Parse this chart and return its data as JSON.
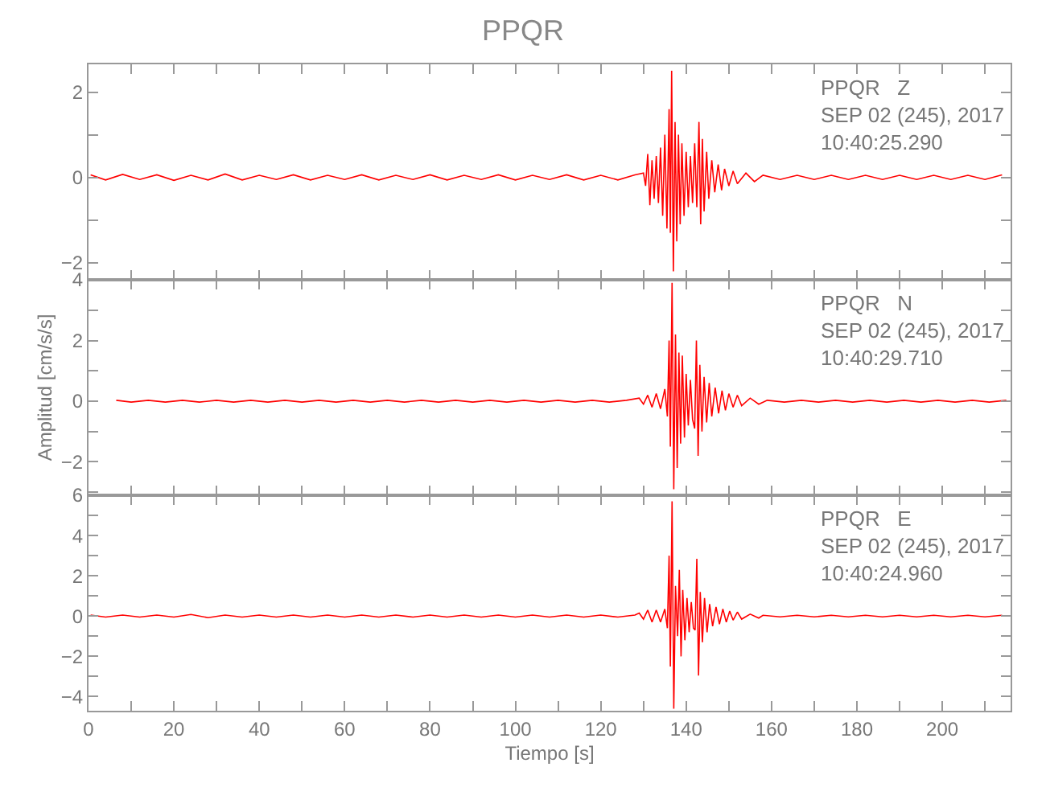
{
  "chart_data": [
    {
      "type": "line",
      "title": "PPQR",
      "color": "#ff0000",
      "xlim": [
        0,
        216
      ],
      "ylim": [
        -2.4,
        2.65
      ],
      "tick_labels": "y",
      "xticks": [
        0,
        {
          "value": 10,
          "label": null
        },
        20,
        {
          "value": 30,
          "label": null
        },
        40,
        {
          "value": 50,
          "label": null
        },
        60,
        {
          "value": 70,
          "label": null
        },
        80,
        {
          "value": 90,
          "label": null
        },
        100,
        {
          "value": 110,
          "label": null
        },
        120,
        {
          "value": 130,
          "label": null
        },
        140,
        {
          "value": 150,
          "label": null
        },
        160,
        {
          "value": 170,
          "label": null
        },
        180,
        {
          "value": 190,
          "label": null
        },
        200,
        {
          "value": 210,
          "label": null
        }
      ],
      "yticks": [
        -2,
        {
          "value": -1,
          "label": null
        },
        0,
        {
          "value": 1,
          "label": null
        },
        2
      ],
      "annotations": [
        "PPQR   Z\nSEP 02 (245), 2017\n10:40:25.290"
      ],
      "x": [
        0.5,
        4,
        8,
        12,
        16,
        20,
        24,
        28,
        32,
        36,
        40,
        44,
        48,
        52,
        56,
        60,
        64,
        68,
        72,
        76,
        80,
        84,
        88,
        92,
        96,
        100,
        104,
        108,
        112,
        116,
        120,
        124,
        128,
        130,
        130.5,
        131,
        131.5,
        132,
        132.5,
        133,
        133.5,
        134,
        134.5,
        135,
        135.5,
        136,
        136.3,
        136.6,
        137,
        137.4,
        137.8,
        138.2,
        138.6,
        139,
        139.5,
        140,
        140.5,
        141,
        141.5,
        142,
        142.5,
        143,
        143.4,
        143.8,
        144.2,
        144.8,
        145.3,
        146,
        146.7,
        147.5,
        148.3,
        149,
        150,
        151,
        152,
        154,
        156,
        158,
        162,
        166,
        170,
        174,
        178,
        182,
        186,
        190,
        194,
        198,
        202,
        206,
        210,
        214
      ],
      "values": [
        0.06,
        -0.06,
        0.07,
        -0.05,
        0.06,
        -0.07,
        0.05,
        -0.06,
        0.08,
        -0.06,
        0.05,
        -0.05,
        0.06,
        -0.06,
        0.05,
        -0.05,
        0.06,
        -0.06,
        0.05,
        -0.05,
        0.06,
        -0.06,
        0.05,
        -0.05,
        0.06,
        -0.06,
        0.05,
        -0.05,
        0.06,
        -0.06,
        0.05,
        -0.06,
        0.06,
        0.1,
        -0.2,
        0.55,
        -0.65,
        0.4,
        -0.5,
        0.5,
        -0.6,
        0.7,
        -0.9,
        1.0,
        -1.2,
        1.6,
        -1.3,
        2.5,
        -2.2,
        1.3,
        -1.5,
        1.0,
        -1.1,
        0.8,
        -0.9,
        0.6,
        -0.7,
        0.5,
        -0.6,
        0.8,
        -0.7,
        1.3,
        -1.1,
        0.9,
        -0.8,
        0.6,
        -0.5,
        0.4,
        -0.35,
        0.3,
        -0.3,
        0.2,
        -0.2,
        0.15,
        -0.15,
        0.1,
        -0.1,
        0.05,
        -0.05,
        0.05,
        -0.05,
        0.05,
        -0.05,
        0.05,
        -0.05,
        0.05,
        -0.05,
        0.05,
        -0.05,
        0.05,
        -0.05,
        0.06
      ]
    },
    {
      "type": "line",
      "ylabel": "Amplitud [cm/s/s]",
      "color": "#ff0000",
      "xlim": [
        0,
        216
      ],
      "ylim": [
        -3.1,
        4
      ],
      "tick_labels": "y",
      "xticks": [
        0,
        {
          "value": 10,
          "label": null
        },
        20,
        {
          "value": 30,
          "label": null
        },
        40,
        {
          "value": 50,
          "label": null
        },
        60,
        {
          "value": 70,
          "label": null
        },
        80,
        {
          "value": 90,
          "label": null
        },
        100,
        {
          "value": 110,
          "label": null
        },
        120,
        {
          "value": 130,
          "label": null
        },
        140,
        {
          "value": 150,
          "label": null
        },
        160,
        {
          "value": 170,
          "label": null
        },
        180,
        {
          "value": 190,
          "label": null
        },
        200,
        {
          "value": 210,
          "label": null
        }
      ],
      "yticks": [
        {
          "value": -3,
          "label": null
        },
        -2,
        {
          "value": -1,
          "label": null
        },
        0,
        {
          "value": 1,
          "label": null
        },
        2,
        {
          "value": 3,
          "label": null
        },
        4
      ],
      "annotations": [
        "PPQR   N\nSEP 02 (245), 2017\n10:40:29.710"
      ],
      "x": [
        6.5,
        10,
        14,
        18,
        22,
        26,
        30,
        34,
        38,
        42,
        46,
        50,
        54,
        58,
        62,
        66,
        70,
        74,
        78,
        82,
        86,
        90,
        94,
        98,
        102,
        106,
        110,
        114,
        118,
        122,
        126,
        129,
        130,
        131,
        132,
        133,
        134,
        135,
        135.6,
        136,
        136.3,
        136.7,
        137.1,
        137.5,
        137.9,
        138.3,
        138.7,
        139.1,
        139.6,
        140,
        140.5,
        141,
        141.5,
        142,
        142.4,
        142.8,
        143.2,
        143.7,
        144.2,
        144.8,
        145.4,
        146,
        146.8,
        147.6,
        148.4,
        149.2,
        150,
        151,
        152,
        153,
        155,
        157,
        159,
        163,
        167,
        171,
        175,
        179,
        183,
        187,
        191,
        195,
        199,
        203,
        207,
        211,
        215
      ],
      "values": [
        0.03,
        -0.03,
        0.03,
        -0.03,
        0.03,
        -0.03,
        0.03,
        -0.03,
        0.03,
        -0.03,
        0.03,
        -0.03,
        0.03,
        -0.03,
        0.03,
        -0.03,
        0.03,
        -0.03,
        0.03,
        -0.03,
        0.03,
        -0.03,
        0.03,
        -0.03,
        0.03,
        -0.03,
        0.03,
        -0.03,
        0.03,
        -0.03,
        0.03,
        0.1,
        -0.1,
        0.2,
        -0.2,
        0.25,
        -0.25,
        0.4,
        -0.5,
        2.0,
        -1.5,
        3.9,
        -2.9,
        2.2,
        -2.2,
        1.6,
        -1.4,
        1.5,
        -1.2,
        0.9,
        -0.8,
        0.7,
        -0.6,
        -0.9,
        2.0,
        -1.8,
        1.2,
        -1.0,
        0.8,
        -0.7,
        0.6,
        -0.5,
        0.45,
        -0.4,
        0.35,
        -0.3,
        0.25,
        -0.2,
        0.2,
        -0.15,
        0.1,
        -0.1,
        0.03,
        -0.03,
        0.03,
        -0.03,
        0.03,
        -0.03,
        0.03,
        -0.03,
        0.03,
        -0.03,
        0.03,
        -0.03,
        0.03,
        -0.03,
        0.03
      ]
    },
    {
      "type": "line",
      "xlabel": "Tiempo [s]",
      "color": "#ff0000",
      "xlim": [
        0,
        216
      ],
      "ylim": [
        -4.7,
        6
      ],
      "xticks": [
        0,
        {
          "value": 10,
          "label": null
        },
        20,
        {
          "value": 30,
          "label": null
        },
        40,
        {
          "value": 50,
          "label": null
        },
        60,
        {
          "value": 70,
          "label": null
        },
        80,
        {
          "value": 90,
          "label": null
        },
        100,
        {
          "value": 110,
          "label": null
        },
        120,
        {
          "value": 130,
          "label": null
        },
        140,
        {
          "value": 150,
          "label": null
        },
        160,
        {
          "value": 170,
          "label": null
        },
        180,
        {
          "value": 190,
          "label": null
        },
        200,
        {
          "value": 210,
          "label": null
        }
      ],
      "yticks": [
        -4,
        {
          "value": -3,
          "label": null
        },
        -2,
        {
          "value": -1,
          "label": null
        },
        0,
        {
          "value": 1,
          "label": null
        },
        2,
        {
          "value": 3,
          "label": null
        },
        4,
        {
          "value": 5,
          "label": null
        },
        6
      ],
      "annotations": [
        "PPQR   E\nSEP 02 (245), 2017\n10:40:24.960"
      ],
      "x": [
        0.5,
        4,
        8,
        12,
        16,
        20,
        24,
        28,
        32,
        36,
        40,
        44,
        48,
        52,
        56,
        60,
        64,
        68,
        72,
        76,
        80,
        84,
        88,
        92,
        96,
        100,
        104,
        108,
        112,
        116,
        120,
        124,
        128,
        129,
        130,
        131,
        132,
        133,
        134,
        135,
        135.6,
        136,
        136.3,
        136.7,
        137.1,
        137.5,
        138,
        138.4,
        138.8,
        139.2,
        139.7,
        140.2,
        140.7,
        141.2,
        141.7,
        142.1,
        142.5,
        142.9,
        143.3,
        143.8,
        144.3,
        144.9,
        145.5,
        146.2,
        147,
        147.8,
        148.6,
        149.4,
        150.2,
        151,
        152,
        153,
        155,
        157,
        158,
        162,
        166,
        170,
        174,
        178,
        182,
        186,
        190,
        194,
        198,
        202,
        206,
        210,
        214
      ],
      "values": [
        0.05,
        -0.05,
        0.05,
        -0.05,
        0.05,
        -0.05,
        0.08,
        -0.08,
        0.05,
        -0.05,
        0.05,
        -0.05,
        0.05,
        -0.05,
        0.05,
        -0.05,
        0.05,
        -0.05,
        0.05,
        -0.05,
        0.05,
        -0.05,
        0.05,
        -0.05,
        0.05,
        -0.05,
        0.05,
        -0.05,
        0.05,
        -0.05,
        0.05,
        -0.05,
        0.05,
        0.15,
        -0.15,
        0.3,
        -0.3,
        0.3,
        -0.3,
        0.35,
        -0.6,
        3.0,
        -2.5,
        5.7,
        -4.6,
        1.5,
        -1.0,
        2.3,
        -2.0,
        1.3,
        -1.2,
        0.9,
        -0.8,
        0.7,
        -0.6,
        -0.7,
        2.85,
        -2.95,
        1.2,
        -1.3,
        0.9,
        -0.8,
        0.6,
        -0.5,
        0.45,
        -0.4,
        0.35,
        -0.3,
        0.25,
        -0.2,
        0.2,
        -0.15,
        0.1,
        -0.1,
        0.04,
        -0.04,
        0.04,
        -0.04,
        0.04,
        -0.04,
        0.04,
        -0.04,
        0.04,
        -0.04,
        0.04,
        -0.04,
        0.04,
        -0.04,
        0.04
      ]
    }
  ]
}
